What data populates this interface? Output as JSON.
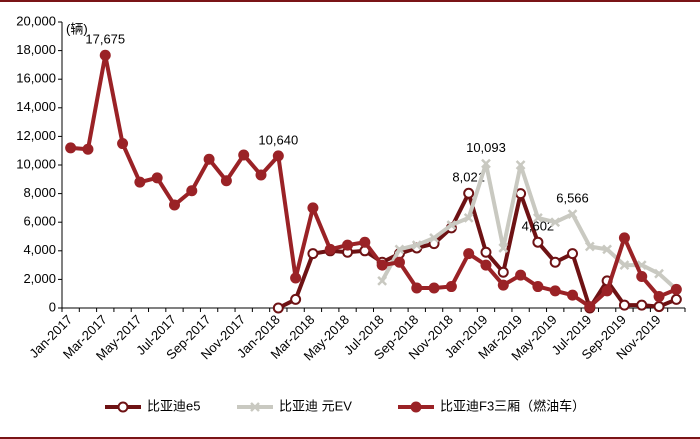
{
  "chart_data": {
    "type": "line",
    "unit_label": "(辆)",
    "categories": [
      "Jan-2017",
      null,
      "Mar-2017",
      null,
      "May-2017",
      null,
      "Jul-2017",
      null,
      "Sep-2017",
      null,
      "Nov-2017",
      null,
      "Jan-2018",
      null,
      "Mar-2018",
      null,
      "May-2018",
      null,
      "Jul-2018",
      null,
      "Sep-2018",
      null,
      "Nov-2018",
      null,
      "Jan-2019",
      null,
      "Mar-2019",
      null,
      "May-2019",
      null,
      "Jul-2019",
      null,
      "Sep-2019",
      null,
      "Nov-2019",
      null
    ],
    "series": [
      {
        "name": "比亚迪e5",
        "color": "#6e1214",
        "marker": "open-circle",
        "values": [
          null,
          null,
          null,
          null,
          null,
          null,
          null,
          null,
          null,
          null,
          null,
          null,
          0,
          600,
          3800,
          4000,
          3900,
          4000,
          3200,
          3800,
          4200,
          4500,
          5600,
          8021,
          3900,
          2500,
          8000,
          4602,
          3200,
          3800,
          0,
          1900,
          200,
          200,
          100,
          600
        ],
        "value_labels": [
          null,
          null,
          null,
          null,
          null,
          null,
          null,
          null,
          null,
          null,
          null,
          null,
          null,
          null,
          null,
          null,
          null,
          null,
          null,
          null,
          null,
          null,
          null,
          "8,021",
          null,
          null,
          null,
          "4,602",
          null,
          null,
          null,
          null,
          null,
          null,
          null,
          null
        ]
      },
      {
        "name": "比亚迪 元EV",
        "color": "#c9c9c1",
        "marker": "x",
        "values": [
          null,
          null,
          null,
          null,
          null,
          null,
          null,
          null,
          null,
          null,
          null,
          null,
          null,
          null,
          null,
          null,
          null,
          null,
          1900,
          4100,
          4400,
          4900,
          5800,
          6300,
          10093,
          4200,
          10000,
          6300,
          6000,
          6566,
          4300,
          4100,
          3000,
          3000,
          2400,
          1300
        ],
        "value_labels": [
          null,
          null,
          null,
          null,
          null,
          null,
          null,
          null,
          null,
          null,
          null,
          null,
          null,
          null,
          null,
          null,
          null,
          null,
          null,
          null,
          null,
          null,
          null,
          null,
          "10,093",
          null,
          null,
          null,
          null,
          "6,566",
          null,
          null,
          null,
          null,
          null,
          null
        ]
      },
      {
        "name": "比亚迪F3三厢（燃油车）",
        "color": "#9a2226",
        "marker": "circle",
        "values": [
          11200,
          11100,
          17675,
          11500,
          8800,
          9100,
          7200,
          8200,
          10400,
          8900,
          10700,
          9300,
          10640,
          2100,
          7000,
          4100,
          4400,
          4600,
          3000,
          3200,
          1400,
          1400,
          1500,
          3800,
          3000,
          1600,
          2300,
          1500,
          1200,
          900,
          100,
          1200,
          4900,
          2200,
          800,
          1300
        ],
        "value_labels": [
          null,
          null,
          "17,675",
          null,
          null,
          null,
          null,
          null,
          null,
          null,
          null,
          null,
          "10,640",
          null,
          null,
          null,
          null,
          null,
          null,
          null,
          null,
          null,
          null,
          null,
          null,
          null,
          null,
          null,
          null,
          null,
          null,
          null,
          null,
          null,
          null,
          null
        ]
      }
    ],
    "ylim": [
      0,
      20000
    ],
    "yticks": [
      0,
      {
        "value": 2000,
        "label": "2,000"
      },
      {
        "value": 4000,
        "label": "4,000"
      },
      {
        "value": 6000,
        "label": "6,000"
      },
      {
        "value": 8000,
        "label": "8,000"
      },
      {
        "value": 10000,
        "label": "10,000"
      },
      {
        "value": 12000,
        "label": "12,000"
      },
      {
        "value": 14000,
        "label": "14,000"
      },
      {
        "value": 16000,
        "label": "16,000"
      },
      {
        "value": 18000,
        "label": "18,000"
      },
      {
        "value": 20000,
        "label": "20,000"
      }
    ],
    "grid": false,
    "legend": "bottom"
  }
}
